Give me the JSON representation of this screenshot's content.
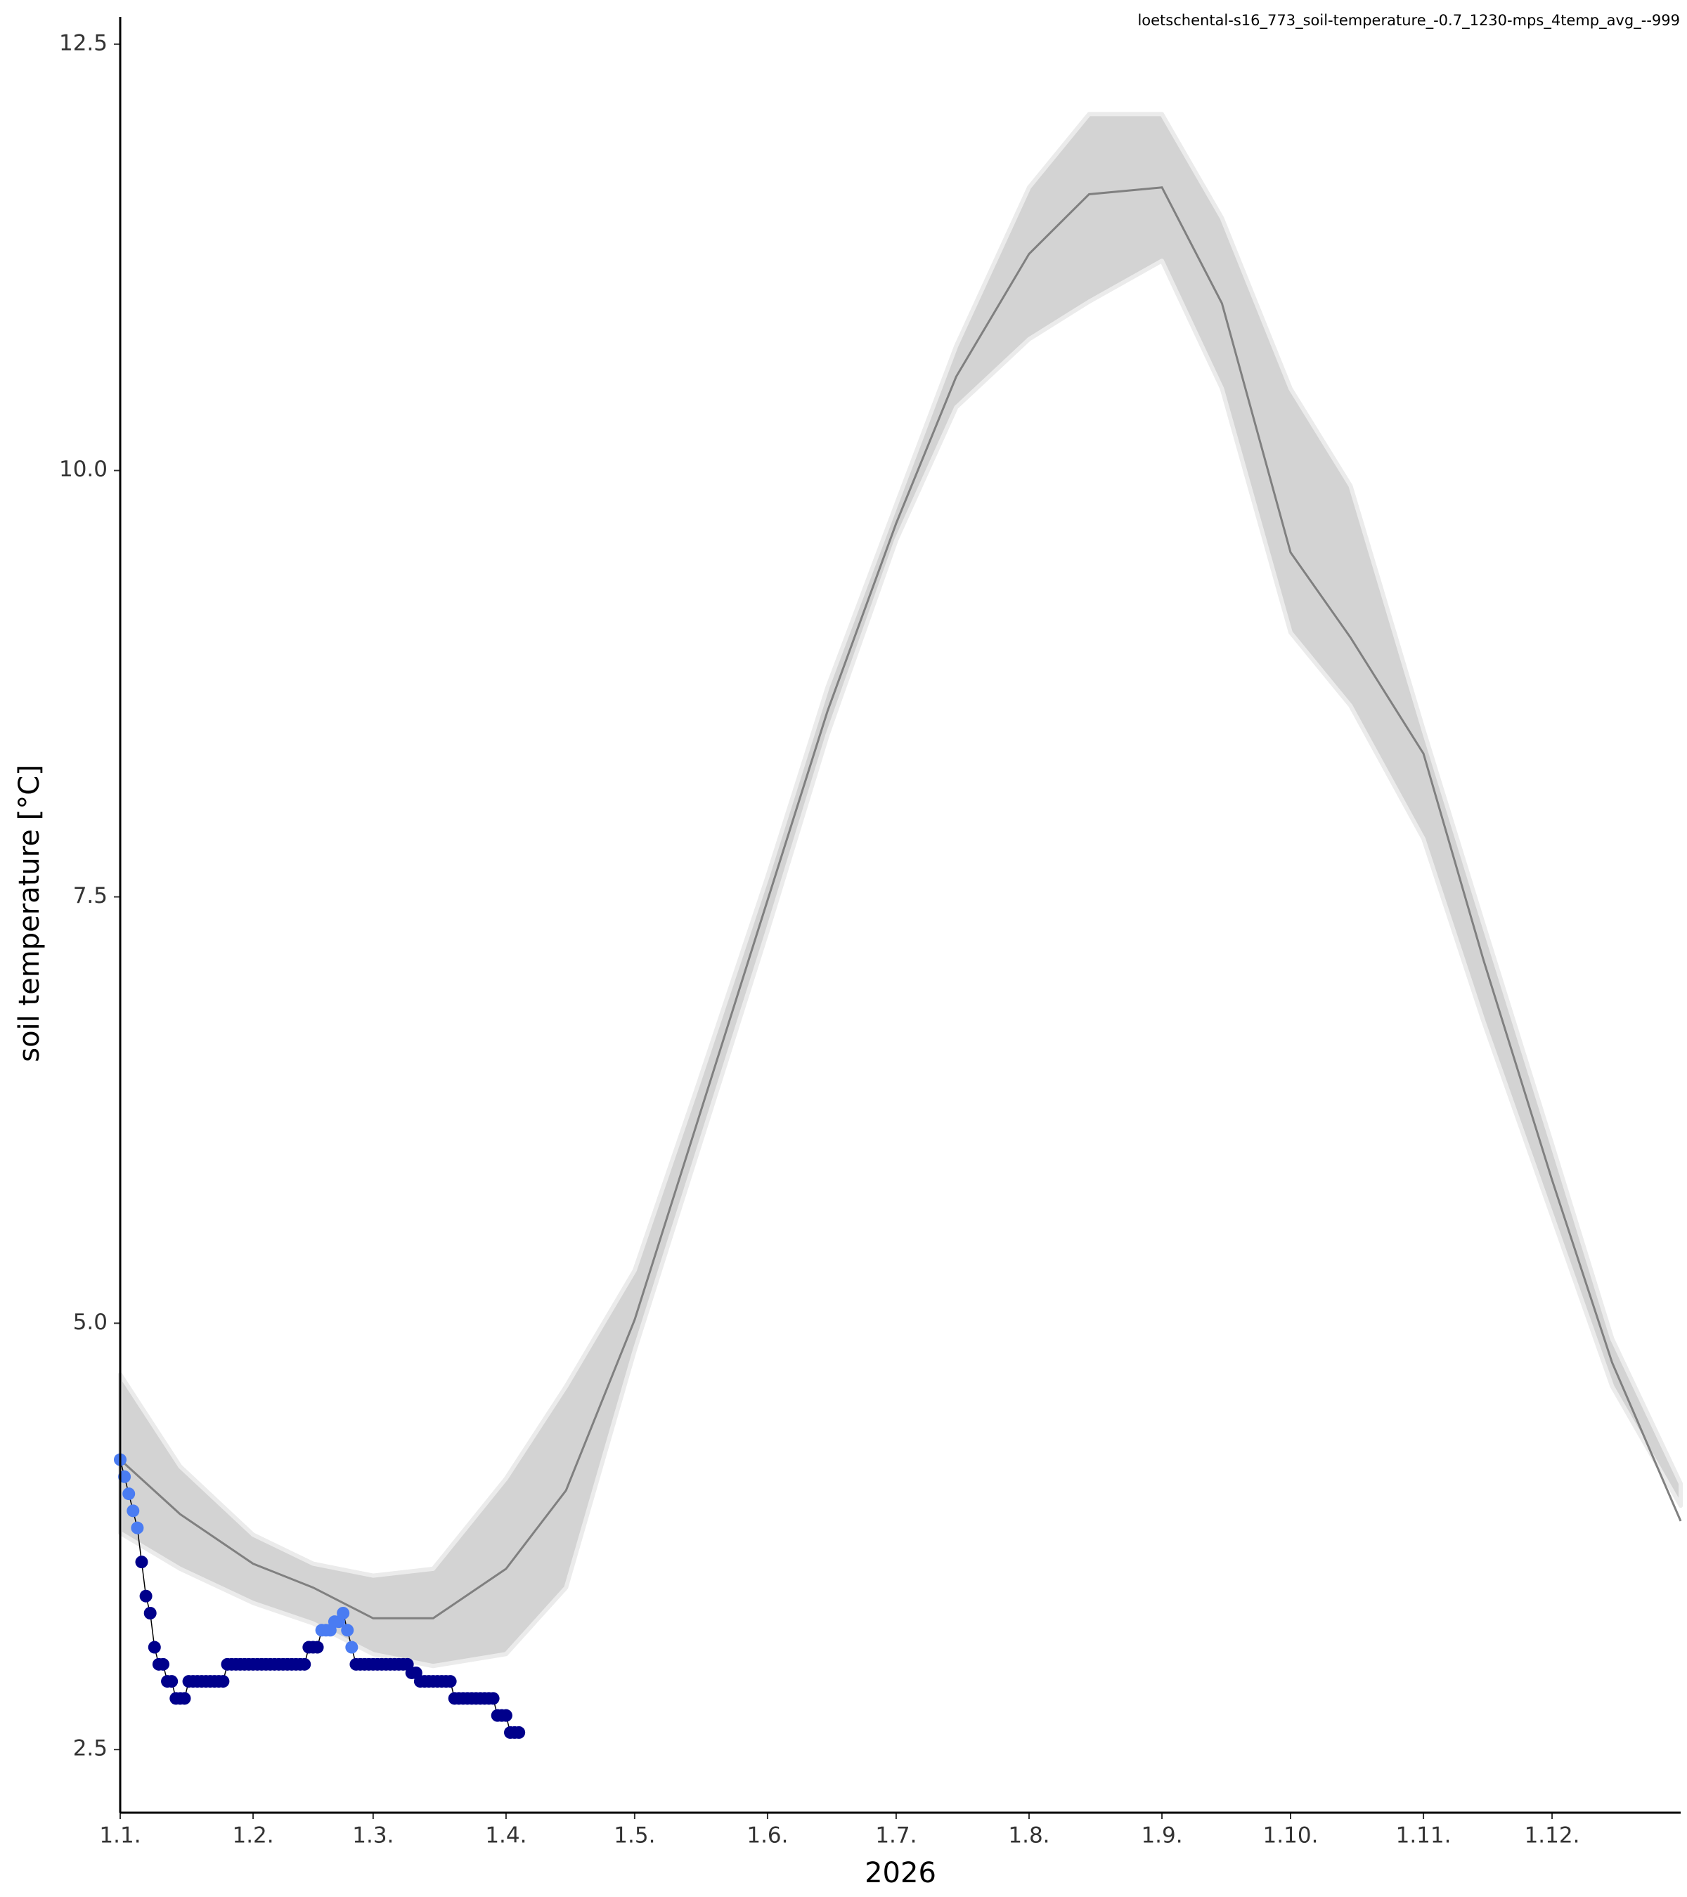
{
  "chart_data": {
    "type": "line",
    "title": "loetschental-s16_773_soil-temperature_-0.7_1230-mps_4temp_avg_--999",
    "x_label": "2026",
    "y_label": "soil temperature [°C]",
    "xlim": [
      "2026-01-01",
      "2026-12-31"
    ],
    "xticks": [
      {
        "value": "2026-01-01",
        "label": "1.1."
      },
      {
        "value": "2026-02-01",
        "label": "1.2."
      },
      {
        "value": "2026-03-01",
        "label": "1.3."
      },
      {
        "value": "2026-04-01",
        "label": "1.4."
      },
      {
        "value": "2026-05-01",
        "label": "1.5."
      },
      {
        "value": "2026-06-01",
        "label": "1.6."
      },
      {
        "value": "2026-07-01",
        "label": "1.7."
      },
      {
        "value": "2026-08-01",
        "label": "1.8."
      },
      {
        "value": "2026-09-01",
        "label": "1.9."
      },
      {
        "value": "2026-10-01",
        "label": "1.10."
      },
      {
        "value": "2026-11-01",
        "label": "1.11."
      },
      {
        "value": "2026-12-01",
        "label": "1.12."
      }
    ],
    "ylim": [
      2.13,
      12.66
    ],
    "yticks": [
      2.5,
      {
        "value": 5,
        "label": "5.0"
      },
      7.5,
      {
        "value": 10,
        "label": "10.0"
      },
      12.5
    ],
    "climatology": {
      "x": [
        "2026-01-01",
        "2026-01-15",
        "2026-02-01",
        "2026-02-15",
        "2026-03-01",
        "2026-03-15",
        "2026-04-01",
        "2026-04-15",
        "2026-05-01",
        "2026-05-15",
        "2026-06-01",
        "2026-06-15",
        "2026-07-01",
        "2026-07-15",
        "2026-08-01",
        "2026-08-15",
        "2026-09-01",
        "2026-09-15",
        "2026-10-01",
        "2026-10-15",
        "2026-11-01",
        "2026-11-15",
        "2026-12-01",
        "2026-12-15",
        "2026-12-31"
      ],
      "median": [
        4.2,
        3.88,
        3.59,
        3.45,
        3.27,
        3.27,
        3.56,
        4.02,
        5.02,
        6.13,
        7.48,
        8.59,
        9.69,
        10.55,
        11.27,
        11.62,
        11.66,
        10.98,
        9.52,
        9.02,
        8.34,
        7.13,
        5.84,
        4.77,
        3.84
      ],
      "upper": [
        4.7,
        4.16,
        3.76,
        3.59,
        3.52,
        3.56,
        4.09,
        4.63,
        5.31,
        6.34,
        7.62,
        8.73,
        9.8,
        10.73,
        11.66,
        12.09,
        12.09,
        11.48,
        10.48,
        9.91,
        8.48,
        7.34,
        6.05,
        4.91,
        4.06
      ],
      "lower": [
        3.77,
        3.56,
        3.36,
        3.24,
        3.06,
        2.99,
        3.06,
        3.45,
        4.84,
        5.95,
        7.3,
        8.45,
        9.59,
        10.37,
        10.77,
        10.99,
        11.23,
        10.48,
        9.05,
        8.62,
        7.84,
        6.77,
        5.63,
        4.63,
        3.93
      ],
      "line_color": "#808080",
      "band_color": "#d3d3d3"
    },
    "observed": {
      "x": [
        "2026-01-01",
        "2026-01-02",
        "2026-01-03",
        "2026-01-04",
        "2026-01-05",
        "2026-01-06",
        "2026-01-07",
        "2026-01-08",
        "2026-01-09",
        "2026-01-10",
        "2026-01-11",
        "2026-01-12",
        "2026-01-13",
        "2026-01-14",
        "2026-01-15",
        "2026-01-16",
        "2026-01-17",
        "2026-01-18",
        "2026-01-19",
        "2026-01-20",
        "2026-01-21",
        "2026-01-22",
        "2026-01-23",
        "2026-01-24",
        "2026-01-25",
        "2026-01-26",
        "2026-01-27",
        "2026-01-28",
        "2026-01-29",
        "2026-01-30",
        "2026-01-31",
        "2026-02-01",
        "2026-02-02",
        "2026-02-03",
        "2026-02-04",
        "2026-02-05",
        "2026-02-06",
        "2026-02-07",
        "2026-02-08",
        "2026-02-09",
        "2026-02-10",
        "2026-02-11",
        "2026-02-12",
        "2026-02-13",
        "2026-02-14",
        "2026-02-15",
        "2026-02-16",
        "2026-02-17",
        "2026-02-18",
        "2026-02-19",
        "2026-02-20",
        "2026-02-21",
        "2026-02-22",
        "2026-02-23",
        "2026-02-24",
        "2026-02-25",
        "2026-02-26",
        "2026-02-27",
        "2026-02-28",
        "2026-03-01",
        "2026-03-02",
        "2026-03-03",
        "2026-03-04",
        "2026-03-05",
        "2026-03-06",
        "2026-03-07",
        "2026-03-08",
        "2026-03-09",
        "2026-03-10",
        "2026-03-11",
        "2026-03-12",
        "2026-03-13",
        "2026-03-14",
        "2026-03-15",
        "2026-03-16",
        "2026-03-17",
        "2026-03-18",
        "2026-03-19",
        "2026-03-20",
        "2026-03-21",
        "2026-03-22",
        "2026-03-23",
        "2026-03-24",
        "2026-03-25",
        "2026-03-26",
        "2026-03-27",
        "2026-03-28",
        "2026-03-29",
        "2026-03-30",
        "2026-03-31",
        "2026-04-01",
        "2026-04-02",
        "2026-04-03",
        "2026-04-04"
      ],
      "values": [
        4.2,
        4.1,
        4.0,
        3.9,
        3.8,
        3.6,
        3.4,
        3.3,
        3.1,
        3.0,
        3.0,
        2.9,
        2.9,
        2.8,
        2.8,
        2.8,
        2.9,
        2.9,
        2.9,
        2.9,
        2.9,
        2.9,
        2.9,
        2.9,
        2.9,
        3.0,
        3.0,
        3.0,
        3.0,
        3.0,
        3.0,
        3.0,
        3.0,
        3.0,
        3.0,
        3.0,
        3.0,
        3.0,
        3.0,
        3.0,
        3.0,
        3.0,
        3.0,
        3.0,
        3.1,
        3.1,
        3.1,
        3.2,
        3.2,
        3.2,
        3.25,
        3.25,
        3.3,
        3.2,
        3.1,
        3.0,
        3.0,
        3.0,
        3.0,
        3.0,
        3.0,
        3.0,
        3.0,
        3.0,
        3.0,
        3.0,
        3.0,
        3.0,
        2.95,
        2.95,
        2.9,
        2.9,
        2.9,
        2.9,
        2.9,
        2.9,
        2.9,
        2.9,
        2.8,
        2.8,
        2.8,
        2.8,
        2.8,
        2.8,
        2.8,
        2.8,
        2.8,
        2.8,
        2.7,
        2.7,
        2.7,
        2.6,
        2.6,
        2.6
      ],
      "colors": [
        "#4a7cf2",
        "#4a7cf2",
        "#4a7cf2",
        "#4a7cf2",
        "#4a7cf2",
        "#00008b",
        "#00008b",
        "#00008b",
        "#00008b",
        "#00008b",
        "#00008b",
        "#00008b",
        "#00008b",
        "#00008b",
        "#00008b",
        "#00008b",
        "#00008b",
        "#00008b",
        "#00008b",
        "#00008b",
        "#00008b",
        "#00008b",
        "#00008b",
        "#00008b",
        "#00008b",
        "#00008b",
        "#00008b",
        "#00008b",
        "#00008b",
        "#00008b",
        "#00008b",
        "#00008b",
        "#00008b",
        "#00008b",
        "#00008b",
        "#00008b",
        "#00008b",
        "#00008b",
        "#00008b",
        "#00008b",
        "#00008b",
        "#00008b",
        "#00008b",
        "#00008b",
        "#00008b",
        "#00008b",
        "#00008b",
        "#4a7cf2",
        "#4a7cf2",
        "#4a7cf2",
        "#4a7cf2",
        "#4a7cf2",
        "#4a7cf2",
        "#4a7cf2",
        "#4a7cf2",
        "#00008b",
        "#00008b",
        "#00008b",
        "#00008b",
        "#00008b",
        "#00008b",
        "#00008b",
        "#00008b",
        "#00008b",
        "#00008b",
        "#00008b",
        "#00008b",
        "#00008b",
        "#00008b",
        "#00008b",
        "#00008b",
        "#00008b",
        "#00008b",
        "#00008b",
        "#00008b",
        "#00008b",
        "#00008b",
        "#00008b",
        "#00008b",
        "#00008b",
        "#00008b",
        "#00008b",
        "#00008b",
        "#00008b",
        "#00008b",
        "#00008b",
        "#00008b",
        "#00008b",
        "#00008b",
        "#00008b",
        "#00008b",
        "#00008b",
        "#00008b",
        "#00008b"
      ],
      "line_color": "#000000"
    }
  }
}
